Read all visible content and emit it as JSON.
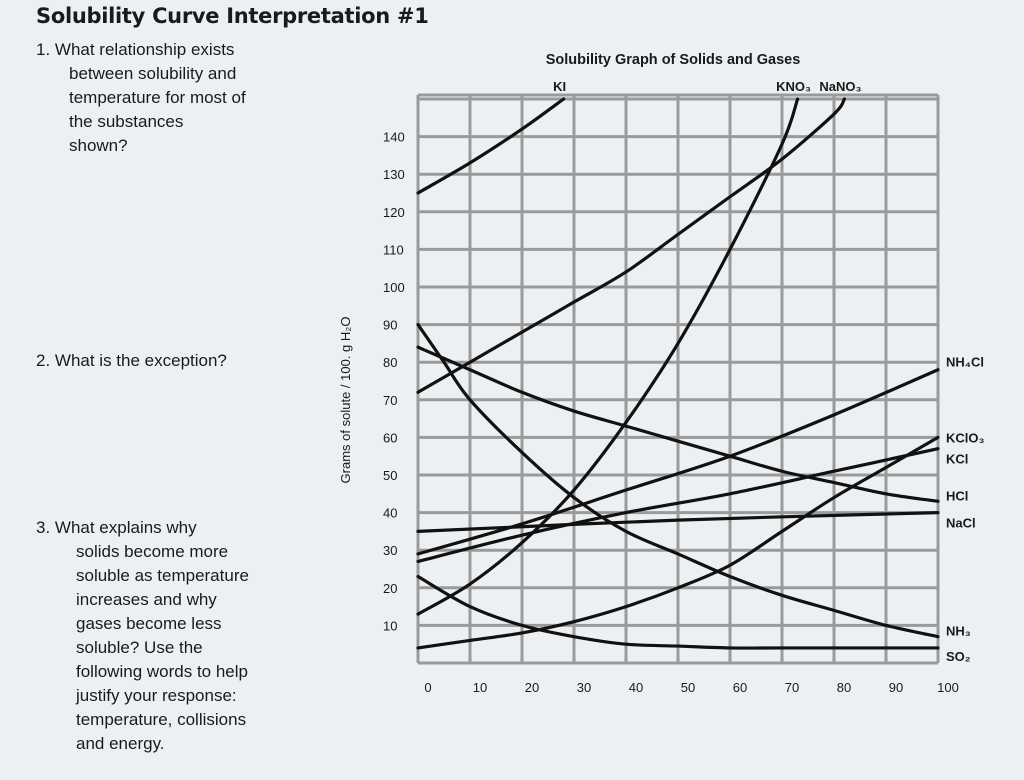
{
  "worksheet": {
    "title": "Solubility Curve Interpretation #1",
    "questions": [
      {
        "lines": [
          "1. What relationship exists",
          "between solubility and",
          "temperature for most of",
          "the substances",
          "shown?"
        ]
      },
      {
        "lines": [
          "2. What is the exception?"
        ]
      },
      {
        "lines": [
          "3. What explains why",
          "solids become more",
          "soluble as temperature",
          "increases and why",
          "gases become less",
          "soluble? Use the",
          "following words to help",
          "justify your response:",
          "temperature, collisions",
          "and energy."
        ]
      }
    ]
  },
  "chart_data": {
    "type": "line",
    "title": "Solubility Graph of Solids and Gases",
    "xlabel": "",
    "ylabel": "Grams of solute / 100. g H₂O",
    "xlim": [
      0,
      100
    ],
    "ylim": [
      0,
      150
    ],
    "x_ticks": [
      0,
      10,
      20,
      30,
      40,
      50,
      60,
      70,
      80,
      90,
      100
    ],
    "y_ticks": [
      10,
      20,
      30,
      40,
      50,
      60,
      70,
      80,
      90,
      100,
      110,
      120,
      130,
      140
    ],
    "grid": true,
    "line_color": "#111111",
    "grid_color": "#9a9a9a",
    "series": [
      {
        "name": "KI",
        "label_pos": "top",
        "points": [
          [
            0,
            125
          ],
          [
            10,
            133
          ],
          [
            20,
            142
          ],
          [
            28,
            150
          ]
        ]
      },
      {
        "name": "KNO₃",
        "label_pos": "top",
        "points": [
          [
            0,
            13
          ],
          [
            10,
            21
          ],
          [
            20,
            32
          ],
          [
            30,
            46
          ],
          [
            40,
            64
          ],
          [
            50,
            85
          ],
          [
            60,
            110
          ],
          [
            70,
            138
          ],
          [
            73,
            150
          ]
        ]
      },
      {
        "name": "NaNO₃",
        "label_pos": "top",
        "points": [
          [
            0,
            72
          ],
          [
            10,
            80
          ],
          [
            20,
            88
          ],
          [
            30,
            96
          ],
          [
            40,
            104
          ],
          [
            50,
            114
          ],
          [
            60,
            124
          ],
          [
            70,
            134
          ],
          [
            80,
            146
          ],
          [
            82,
            150
          ]
        ]
      },
      {
        "name": "NH₄Cl",
        "label_pos": "right",
        "points": [
          [
            0,
            29
          ],
          [
            20,
            37
          ],
          [
            40,
            46
          ],
          [
            60,
            55
          ],
          [
            80,
            66
          ],
          [
            100,
            78
          ]
        ]
      },
      {
        "name": "KClO₃",
        "label_pos": "right",
        "points": [
          [
            0,
            4
          ],
          [
            10,
            6
          ],
          [
            20,
            8
          ],
          [
            30,
            11
          ],
          [
            40,
            15
          ],
          [
            50,
            20
          ],
          [
            60,
            26
          ],
          [
            70,
            35
          ],
          [
            80,
            44
          ],
          [
            90,
            52
          ],
          [
            100,
            60
          ]
        ]
      },
      {
        "name": "KCl",
        "label_pos": "right",
        "points": [
          [
            0,
            27
          ],
          [
            20,
            34
          ],
          [
            40,
            40
          ],
          [
            60,
            45
          ],
          [
            80,
            51
          ],
          [
            100,
            57
          ]
        ]
      },
      {
        "name": "HCl",
        "label_pos": "right",
        "points": [
          [
            0,
            84
          ],
          [
            10,
            78
          ],
          [
            20,
            72
          ],
          [
            30,
            67
          ],
          [
            40,
            63
          ],
          [
            50,
            59
          ],
          [
            60,
            55
          ],
          [
            70,
            51
          ],
          [
            80,
            48
          ],
          [
            90,
            45
          ],
          [
            100,
            43
          ]
        ]
      },
      {
        "name": "NaCl",
        "label_pos": "right",
        "points": [
          [
            0,
            35
          ],
          [
            50,
            38
          ],
          [
            100,
            40
          ]
        ]
      },
      {
        "name": "NH₃",
        "label_pos": "right",
        "points": [
          [
            0,
            90
          ],
          [
            5,
            80
          ],
          [
            10,
            70
          ],
          [
            20,
            56
          ],
          [
            30,
            44
          ],
          [
            40,
            35
          ],
          [
            50,
            29
          ],
          [
            60,
            23
          ],
          [
            70,
            18
          ],
          [
            80,
            14
          ],
          [
            90,
            10
          ],
          [
            100,
            7
          ]
        ]
      },
      {
        "name": "SO₂",
        "label_pos": "right",
        "points": [
          [
            0,
            23
          ],
          [
            10,
            15
          ],
          [
            20,
            10
          ],
          [
            30,
            7
          ],
          [
            40,
            5
          ],
          [
            50,
            4.5
          ],
          [
            60,
            4
          ],
          [
            70,
            4
          ],
          [
            100,
            4
          ]
        ]
      }
    ]
  }
}
